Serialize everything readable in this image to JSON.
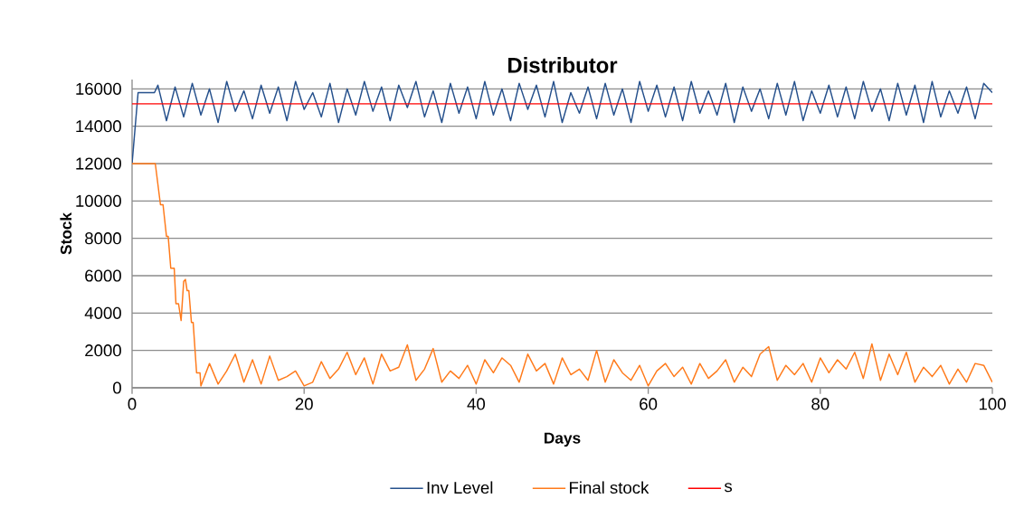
{
  "chart_data": {
    "type": "line",
    "title": "Distributor",
    "xlabel": "Days",
    "ylabel": "Stock",
    "xlim": [
      0,
      100
    ],
    "ylim": [
      0,
      16500
    ],
    "xticks": [
      0,
      20,
      40,
      60,
      80,
      100
    ],
    "yticks": [
      0,
      2000,
      4000,
      6000,
      8000,
      10000,
      12000,
      14000,
      16000
    ],
    "grid": "y",
    "legend": "bottom",
    "series": [
      {
        "name": "Inv Level",
        "color": "#25508C",
        "x": [
          0,
          0.7,
          2.6,
          3,
          4,
          5,
          6,
          7,
          8,
          9,
          10,
          11,
          12,
          13,
          14,
          15,
          16,
          17,
          18,
          19,
          20,
          21,
          22,
          23,
          24,
          25,
          26,
          27,
          28,
          29,
          30,
          31,
          32,
          33,
          34,
          35,
          36,
          37,
          38,
          39,
          40,
          41,
          42,
          43,
          44,
          45,
          46,
          47,
          48,
          49,
          50,
          51,
          52,
          53,
          54,
          55,
          56,
          57,
          58,
          59,
          60,
          61,
          62,
          63,
          64,
          65,
          66,
          67,
          68,
          69,
          70,
          71,
          72,
          73,
          74,
          75,
          76,
          77,
          78,
          79,
          80,
          81,
          82,
          83,
          84,
          85,
          86,
          87,
          88,
          89,
          90,
          91,
          92,
          93,
          94,
          95,
          96,
          97,
          98,
          99,
          100
        ],
        "values": [
          12000,
          15800,
          15800,
          16200,
          14300,
          16100,
          14500,
          16300,
          14600,
          16000,
          14200,
          16400,
          14800,
          15900,
          14400,
          16200,
          14700,
          16100,
          14300,
          16400,
          14900,
          15800,
          14500,
          16300,
          14200,
          16000,
          14600,
          16400,
          14800,
          16100,
          14300,
          16200,
          15000,
          16400,
          14500,
          15900,
          14200,
          16300,
          14700,
          16100,
          14400,
          16400,
          14600,
          16000,
          14300,
          16300,
          14900,
          16200,
          14500,
          16400,
          14200,
          15800,
          14700,
          16100,
          14400,
          16300,
          14600,
          16000,
          14200,
          16400,
          14800,
          16200,
          14500,
          16100,
          14300,
          16400,
          14700,
          15900,
          14600,
          16300,
          14200,
          16100,
          14800,
          16000,
          14400,
          16300,
          14600,
          16400,
          14300,
          15900,
          14700,
          16200,
          14500,
          16100,
          14400,
          16400,
          14800,
          16000,
          14300,
          16300,
          14600,
          16200,
          14200,
          16400,
          14500,
          15900,
          14700,
          16100,
          14400,
          16300,
          15800
        ]
      },
      {
        "name": "Final stock",
        "color": "#FF7A1A",
        "x": [
          0,
          2.7,
          3.3,
          3.6,
          4.0,
          4.2,
          4.5,
          4.9,
          5.1,
          5.4,
          5.7,
          6.0,
          6.2,
          6.4,
          6.6,
          6.9,
          7.1,
          7.5,
          7.9,
          8,
          9,
          10,
          11,
          12,
          13,
          14,
          15,
          16,
          17,
          18,
          19,
          20,
          21,
          22,
          23,
          24,
          25,
          26,
          27,
          28,
          29,
          30,
          31,
          32,
          33,
          34,
          35,
          36,
          37,
          38,
          39,
          40,
          41,
          42,
          43,
          44,
          45,
          46,
          47,
          48,
          49,
          50,
          51,
          52,
          53,
          54,
          55,
          56,
          57,
          58,
          59,
          60,
          61,
          62,
          63,
          64,
          65,
          66,
          67,
          68,
          69,
          70,
          71,
          72,
          73,
          74,
          75,
          76,
          77,
          78,
          79,
          80,
          81,
          82,
          83,
          84,
          85,
          86,
          87,
          88,
          89,
          90,
          91,
          92,
          93,
          94,
          95,
          96,
          97,
          98,
          99,
          100
        ],
        "values": [
          12000,
          12000,
          9800,
          9800,
          8100,
          8100,
          6400,
          6400,
          4500,
          4500,
          3600,
          5700,
          5800,
          5200,
          5200,
          3500,
          3500,
          800,
          800,
          100,
          1300,
          200,
          900,
          1800,
          300,
          1500,
          200,
          1700,
          400,
          600,
          900,
          100,
          300,
          1400,
          500,
          1000,
          1900,
          700,
          1600,
          200,
          1800,
          900,
          1100,
          2300,
          400,
          1000,
          2100,
          300,
          900,
          500,
          1200,
          200,
          1500,
          800,
          1600,
          1200,
          300,
          1800,
          900,
          1300,
          200,
          1600,
          700,
          1000,
          400,
          2000,
          300,
          1500,
          800,
          400,
          1200,
          100,
          900,
          1300,
          600,
          1100,
          200,
          1300,
          500,
          900,
          1500,
          300,
          1100,
          600,
          1800,
          2200,
          400,
          1200,
          700,
          1300,
          300,
          1600,
          800,
          1500,
          1000,
          1900,
          500,
          2350,
          400,
          1800,
          700,
          1900,
          300,
          1100,
          600,
          1200,
          200,
          1000,
          300,
          1300,
          1200,
          300
        ]
      },
      {
        "name": "s",
        "color": "#FF0000",
        "x": [
          0,
          100
        ],
        "values": [
          15200,
          15200
        ]
      }
    ]
  }
}
